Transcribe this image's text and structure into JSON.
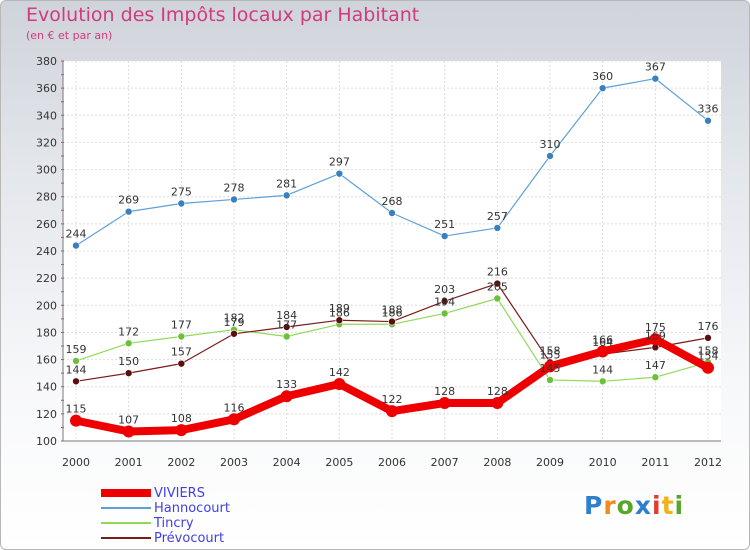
{
  "header": {
    "title": "Evolution des Impôts locaux par Habitant",
    "subtitle": "(en € et par an)"
  },
  "logo": {
    "letters": [
      "P",
      "r",
      "o",
      "x",
      "i",
      "t",
      "i"
    ],
    "colors": [
      "#2f7fd0",
      "#f08a1c",
      "#5aa62c",
      "#2f7fd0",
      "#e23c2c",
      "#f0b21c",
      "#5aa62c"
    ]
  },
  "chart_data": {
    "type": "line",
    "x": [
      2000,
      2001,
      2002,
      2003,
      2004,
      2005,
      2006,
      2007,
      2008,
      2009,
      2010,
      2011,
      2012
    ],
    "ylim": [
      100,
      380
    ],
    "yticks": [
      100,
      120,
      140,
      160,
      180,
      200,
      220,
      240,
      260,
      280,
      300,
      320,
      340,
      360,
      380
    ],
    "grid": true,
    "legend_position": "bottom-left",
    "series": [
      {
        "name": "VIVIERS",
        "color": "#ee0000",
        "values": [
          115,
          107,
          108,
          116,
          133,
          142,
          122,
          128,
          128,
          155,
          166,
          175,
          154
        ]
      },
      {
        "name": "Hannocourt",
        "color": "#5ea0d8",
        "values": [
          244,
          269,
          275,
          278,
          281,
          297,
          268,
          251,
          257,
          310,
          360,
          367,
          336
        ]
      },
      {
        "name": "Tincry",
        "color": "#94d85a",
        "values": [
          159,
          172,
          177,
          182,
          177,
          186,
          186,
          194,
          205,
          145,
          144,
          147,
          158
        ]
      },
      {
        "name": "Prévocourt",
        "color": "#7a1c1c",
        "values": [
          144,
          150,
          157,
          179,
          184,
          189,
          188,
          203,
          216,
          158,
          164,
          169,
          176
        ]
      }
    ]
  }
}
